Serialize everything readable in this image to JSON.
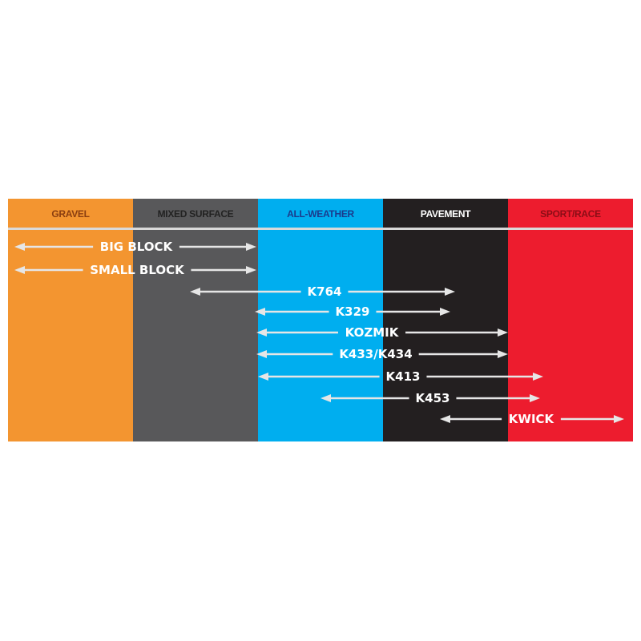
{
  "columns": [
    {
      "label": "GRAVEL",
      "bg": "#f39530",
      "fg": "#8a3e10"
    },
    {
      "label": "MIXED SURFACE",
      "bg": "#58585a",
      "fg": "#222222"
    },
    {
      "label": "ALL-WEATHER",
      "bg": "#00aeef",
      "fg": "#1b3a8c"
    },
    {
      "label": "PAVEMENT",
      "bg": "#231f20",
      "fg": "#ffffff"
    },
    {
      "label": "SPORT/RACE",
      "bg": "#ed1c2e",
      "fg": "#8b0d16"
    }
  ],
  "divider_color": "#d9d9d9",
  "arrow_color": "#e6e6e6",
  "tires": [
    {
      "label": "BIG BLOCK"
    },
    {
      "label": "SMALL BLOCK"
    },
    {
      "label": "K764"
    },
    {
      "label": "K329"
    },
    {
      "label": "KOZMIK"
    },
    {
      "label": "K433/K434"
    },
    {
      "label": "K413"
    },
    {
      "label": "K453"
    },
    {
      "label": "KWICK"
    }
  ]
}
